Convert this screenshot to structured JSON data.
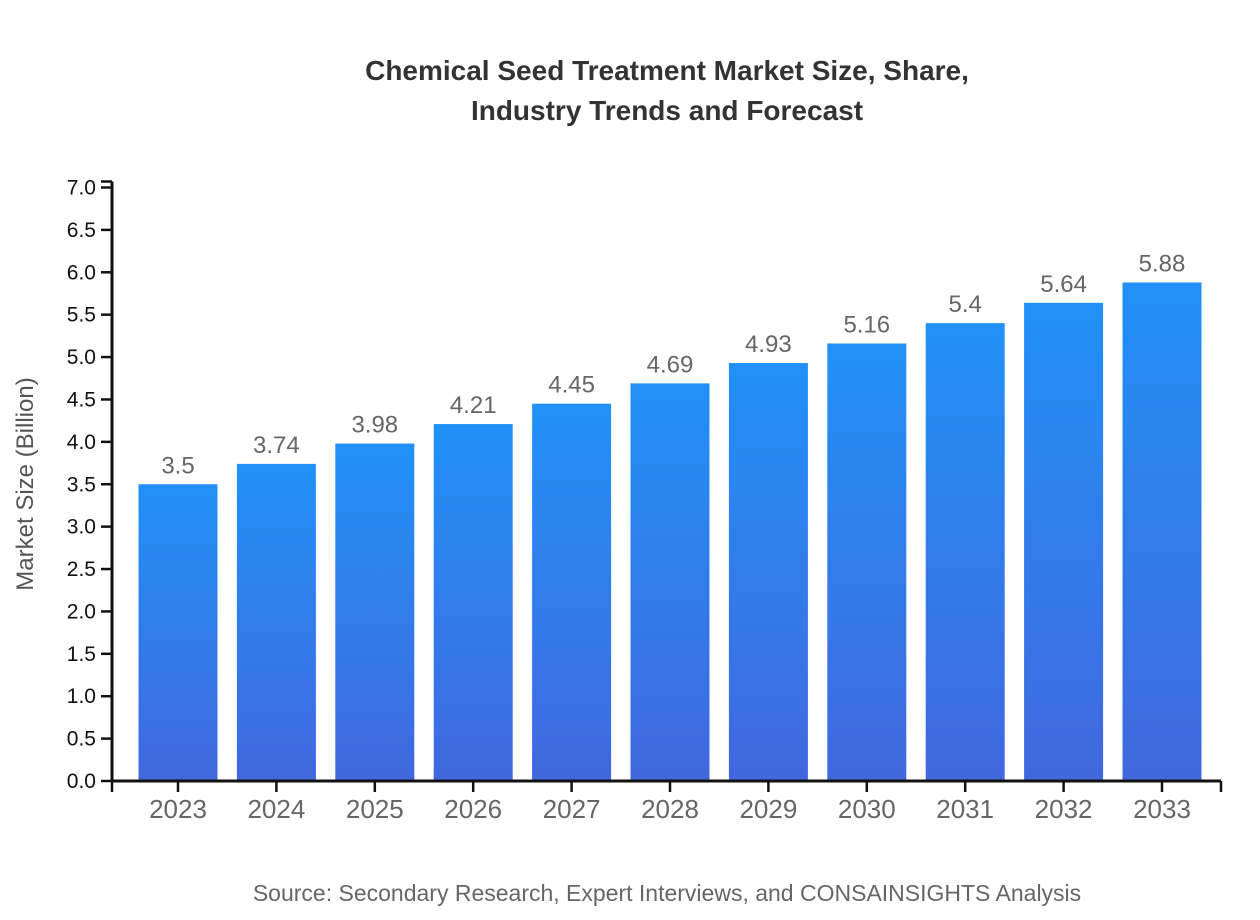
{
  "title": {
    "line1": "Chemical Seed Treatment Market Size, Share,",
    "line2": "Industry Trends and Forecast"
  },
  "source": "Source: Secondary Research, Expert Interviews, and CONSAINSIGHTS Analysis",
  "chart_data": {
    "type": "bar",
    "title": "Chemical Seed Treatment Market Size, Share, Industry Trends and Forecast",
    "categories": [
      "2023",
      "2024",
      "2025",
      "2026",
      "2027",
      "2028",
      "2029",
      "2030",
      "2031",
      "2032",
      "2033"
    ],
    "values": [
      3.5,
      3.74,
      3.98,
      4.21,
      4.45,
      4.69,
      4.93,
      5.16,
      5.4,
      5.64,
      5.88
    ],
    "value_labels": [
      "3.5",
      "3.74",
      "3.98",
      "4.21",
      "4.45",
      "4.69",
      "4.93",
      "5.16",
      "5.4",
      "5.64",
      "5.88"
    ],
    "xlabel": "",
    "ylabel": "Market Size (Billion)",
    "ylim": [
      0,
      7
    ],
    "ytick_step": 0.5,
    "grid": false,
    "legend": false,
    "colors": {
      "bar_gradient_top": "#2191f8",
      "bar_gradient_bottom": "#4168dd",
      "axis": "#111111",
      "ytick_label": "#111111",
      "category_label": "#666666",
      "value_label": "#666666",
      "axis_title": "#555555",
      "title": "#333333",
      "source": "#666666",
      "background": "#ffffff"
    }
  }
}
